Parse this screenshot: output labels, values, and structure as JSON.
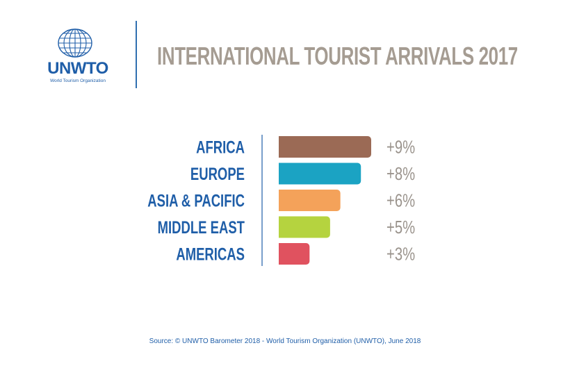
{
  "header": {
    "logo_text": "UNWTO",
    "logo_subtext": "World Tourism Organization",
    "title": "INTERNATIONAL TOURIST ARRIVALS",
    "title_year": "2017"
  },
  "source": "Source: © UNWTO Barometer 2018 - World Tourism Organization (UNWTO), June 2018",
  "chart_data": {
    "type": "bar",
    "orientation": "horizontal",
    "title": "INTERNATIONAL TOURIST ARRIVALS 2017",
    "categories": [
      "AFRICA",
      "EUROPE",
      "ASIA & PACIFIC",
      "MIDDLE EAST",
      "AMERICAS"
    ],
    "values": [
      9,
      8,
      6,
      5,
      3
    ],
    "value_labels": [
      "+9%",
      "+8%",
      "+6%",
      "+5%",
      "+3%"
    ],
    "unit": "%",
    "colors": [
      "#9b6a55",
      "#1ba3c3",
      "#f4a25a",
      "#b5d33f",
      "#e0525f"
    ],
    "xlabel": "",
    "ylabel": "",
    "legend": "none",
    "grid": false
  },
  "colors": {
    "label": "#1f5ea8",
    "value": "#9a938c",
    "title": "#a59c92",
    "accent": "#1f5ea8"
  }
}
